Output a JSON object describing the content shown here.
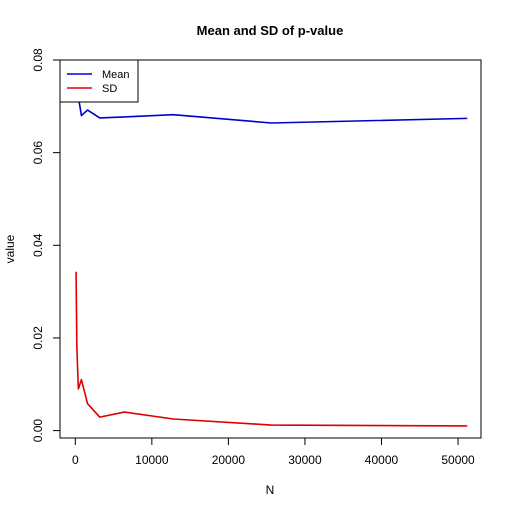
{
  "chart_data": {
    "type": "line",
    "title": "Mean and SD of p-value",
    "xlabel": "N",
    "ylabel": "value",
    "xlim": [
      -2000,
      53000
    ],
    "ylim": [
      -0.0016,
      0.08
    ],
    "x_ticks": [
      0,
      10000,
      20000,
      30000,
      40000,
      50000
    ],
    "x_tick_labels": [
      "0",
      "10000",
      "20000",
      "30000",
      "40000",
      "50000"
    ],
    "y_ticks": [
      0.0,
      0.02,
      0.04,
      0.06,
      0.08
    ],
    "y_tick_labels": [
      "0.00",
      "0.02",
      "0.04",
      "0.06",
      "0.08"
    ],
    "grid": false,
    "legend_position": "top-left",
    "series": [
      {
        "name": "Mean",
        "color": "#0000cc",
        "x": [
          100,
          200,
          400,
          800,
          1600,
          3200,
          6400,
          12800,
          25600,
          51200
        ],
        "y": [
          0.08,
          0.0765,
          0.072,
          0.068,
          0.0692,
          0.0675,
          0.0677,
          0.0682,
          0.0664,
          0.0674
        ]
      },
      {
        "name": "SD",
        "color": "#dd0000",
        "x": [
          100,
          200,
          400,
          800,
          1600,
          3200,
          6400,
          12800,
          25600,
          51200
        ],
        "y": [
          0.0343,
          0.018,
          0.009,
          0.011,
          0.0058,
          0.0029,
          0.004,
          0.0025,
          0.0012,
          0.001
        ]
      }
    ]
  }
}
